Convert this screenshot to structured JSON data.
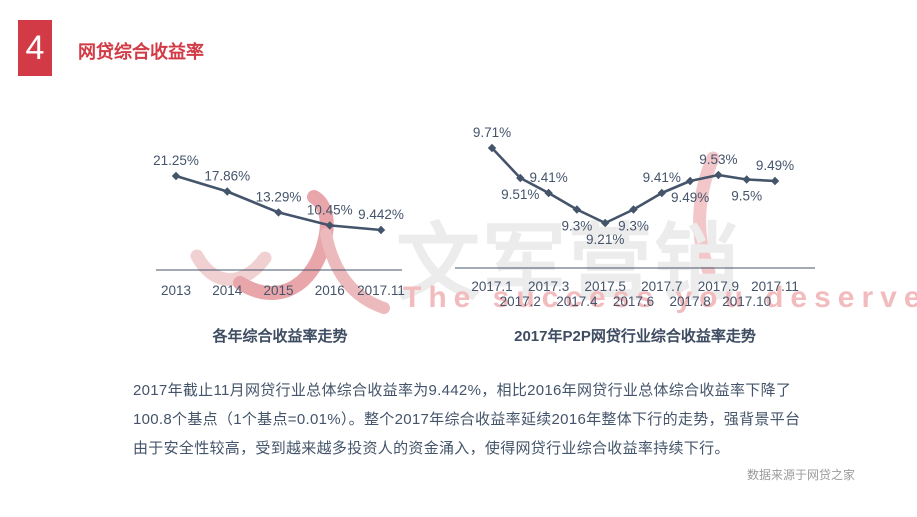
{
  "slide": {
    "header": {
      "index_number": "4",
      "title": "网贷综合收益率"
    },
    "watermark": {
      "brand_cn": "文军营销",
      "tagline_en": "The success you deserve"
    },
    "body": {
      "lines": [
        "2017年截止11月网贷行业总体综合收益率为9.442%，相比2016年网贷行业总体综合收益率下降了",
        "100.8个基点（1个基点=0.01%）。整个2017年综合收益率延续2016年整体下行的走势，强背景平台",
        "由于安全性较高，受到越来越多投资人的资金涌入，使得网贷行业综合收益率持续下行。"
      ]
    },
    "footer": {
      "data_source": "数据来源于网贷之家"
    }
  },
  "chart_data": [
    {
      "type": "line",
      "title": "各年综合收益率走势",
      "categories": [
        "2013",
        "2014",
        "2015",
        "2016",
        "2017.11"
      ],
      "values": [
        21.25,
        17.86,
        13.29,
        10.45,
        9.442
      ],
      "point_labels": [
        "21.25%",
        "17.86%",
        "13.29%",
        "10.45%",
        "9.442%"
      ],
      "label_placement": [
        "above",
        "above",
        "above",
        "above",
        "above"
      ],
      "xlabel": "",
      "ylabel": "",
      "ylim": [
        9.442,
        21.25
      ],
      "grid": false,
      "legend": "none",
      "line_color": "#44546A",
      "marker": "diamond",
      "x_axis_rows": 1
    },
    {
      "type": "line",
      "title": "2017年P2P网贷行业综合收益率走势",
      "categories": [
        "2017.1",
        "2017.2",
        "2017.3",
        "2017.4",
        "2017.5",
        "2017.6",
        "2017.7",
        "2017.8",
        "2017.9",
        "2017.10",
        "2017.11"
      ],
      "values": [
        9.71,
        9.51,
        9.41,
        9.3,
        9.21,
        9.3,
        9.41,
        9.49,
        9.53,
        9.5,
        9.49
      ],
      "point_labels": [
        "9.71%",
        "9.51%",
        "9.41%",
        "9.3%",
        "9.21%",
        "9.3%",
        "9.41%",
        "9.49%",
        "9.53%",
        "9.5%",
        "9.49%"
      ],
      "label_placement": [
        "above",
        "below",
        "above",
        "below",
        "below",
        "below",
        "above",
        "below",
        "above",
        "below",
        "above"
      ],
      "xlabel": "",
      "ylabel": "",
      "ylim": [
        9.21,
        9.71
      ],
      "grid": false,
      "legend": "none",
      "line_color": "#44546A",
      "marker": "diamond",
      "x_axis_rows": 2
    }
  ],
  "colors": {
    "accent_red": "#D23B45",
    "chart_line": "#44546A",
    "text_dark": "#44546A",
    "watermark_gray": "#ECECEC",
    "watermark_pink": "#F2BCBE",
    "source_gray": "#9B9B9B"
  }
}
